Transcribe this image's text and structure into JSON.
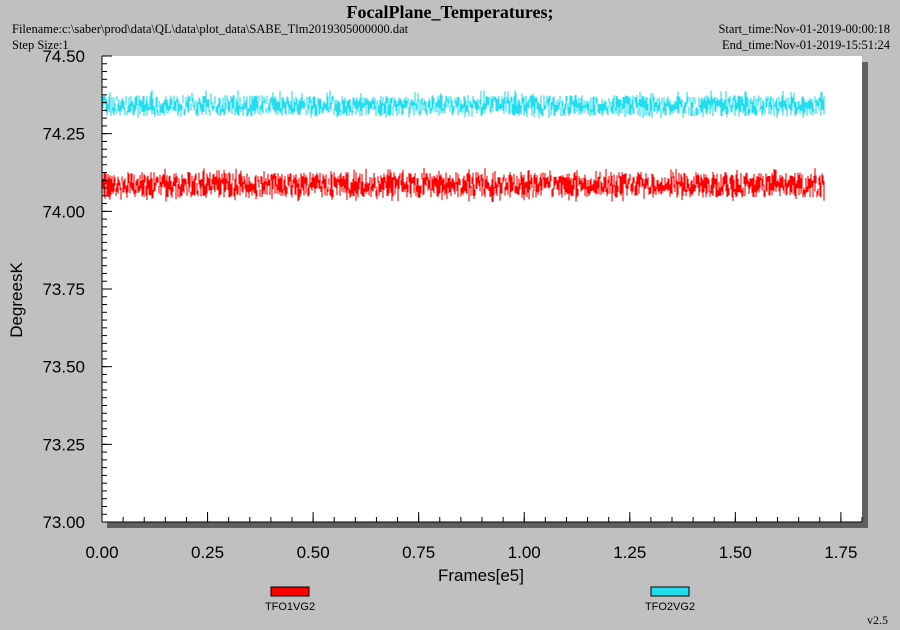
{
  "header": {
    "title": "FocalPlane_Temperatures;",
    "filename": "Filename:c:\\saber\\prod\\data\\QL\\data\\plot_data\\SABE_Tlm2019305000000.dat",
    "step_size": "Step Size:1",
    "start_time": "Start_time:Nov-01-2019-00:00:18",
    "end_time": "End_time:Nov-01-2019-15:51:24"
  },
  "footer": {
    "version": "v2.5"
  },
  "chart_data": {
    "type": "line",
    "title": "FocalPlane_Temperatures;",
    "xlabel": "Frames[e5]",
    "ylabel": "DegreesK",
    "xlim": [
      0,
      1.8
    ],
    "ylim": [
      73.0,
      74.5
    ],
    "x_ticks": [
      "0.00",
      "0.25",
      "0.50",
      "0.75",
      "1.00",
      "1.25",
      "1.50",
      "1.75"
    ],
    "y_ticks": [
      "73.00",
      "73.25",
      "73.50",
      "73.75",
      "74.00",
      "74.25",
      "74.50"
    ],
    "x_range_data": [
      0.0,
      1.71
    ],
    "grid": false,
    "legend_position": "bottom",
    "series": [
      {
        "name": "TFO1VG2",
        "color": "#ff0000",
        "mean": 74.085,
        "min": 74.03,
        "max": 74.14
      },
      {
        "name": "TFO2VG2",
        "color": "#22ddee",
        "mean": 74.34,
        "min": 74.3,
        "max": 74.39
      }
    ]
  }
}
